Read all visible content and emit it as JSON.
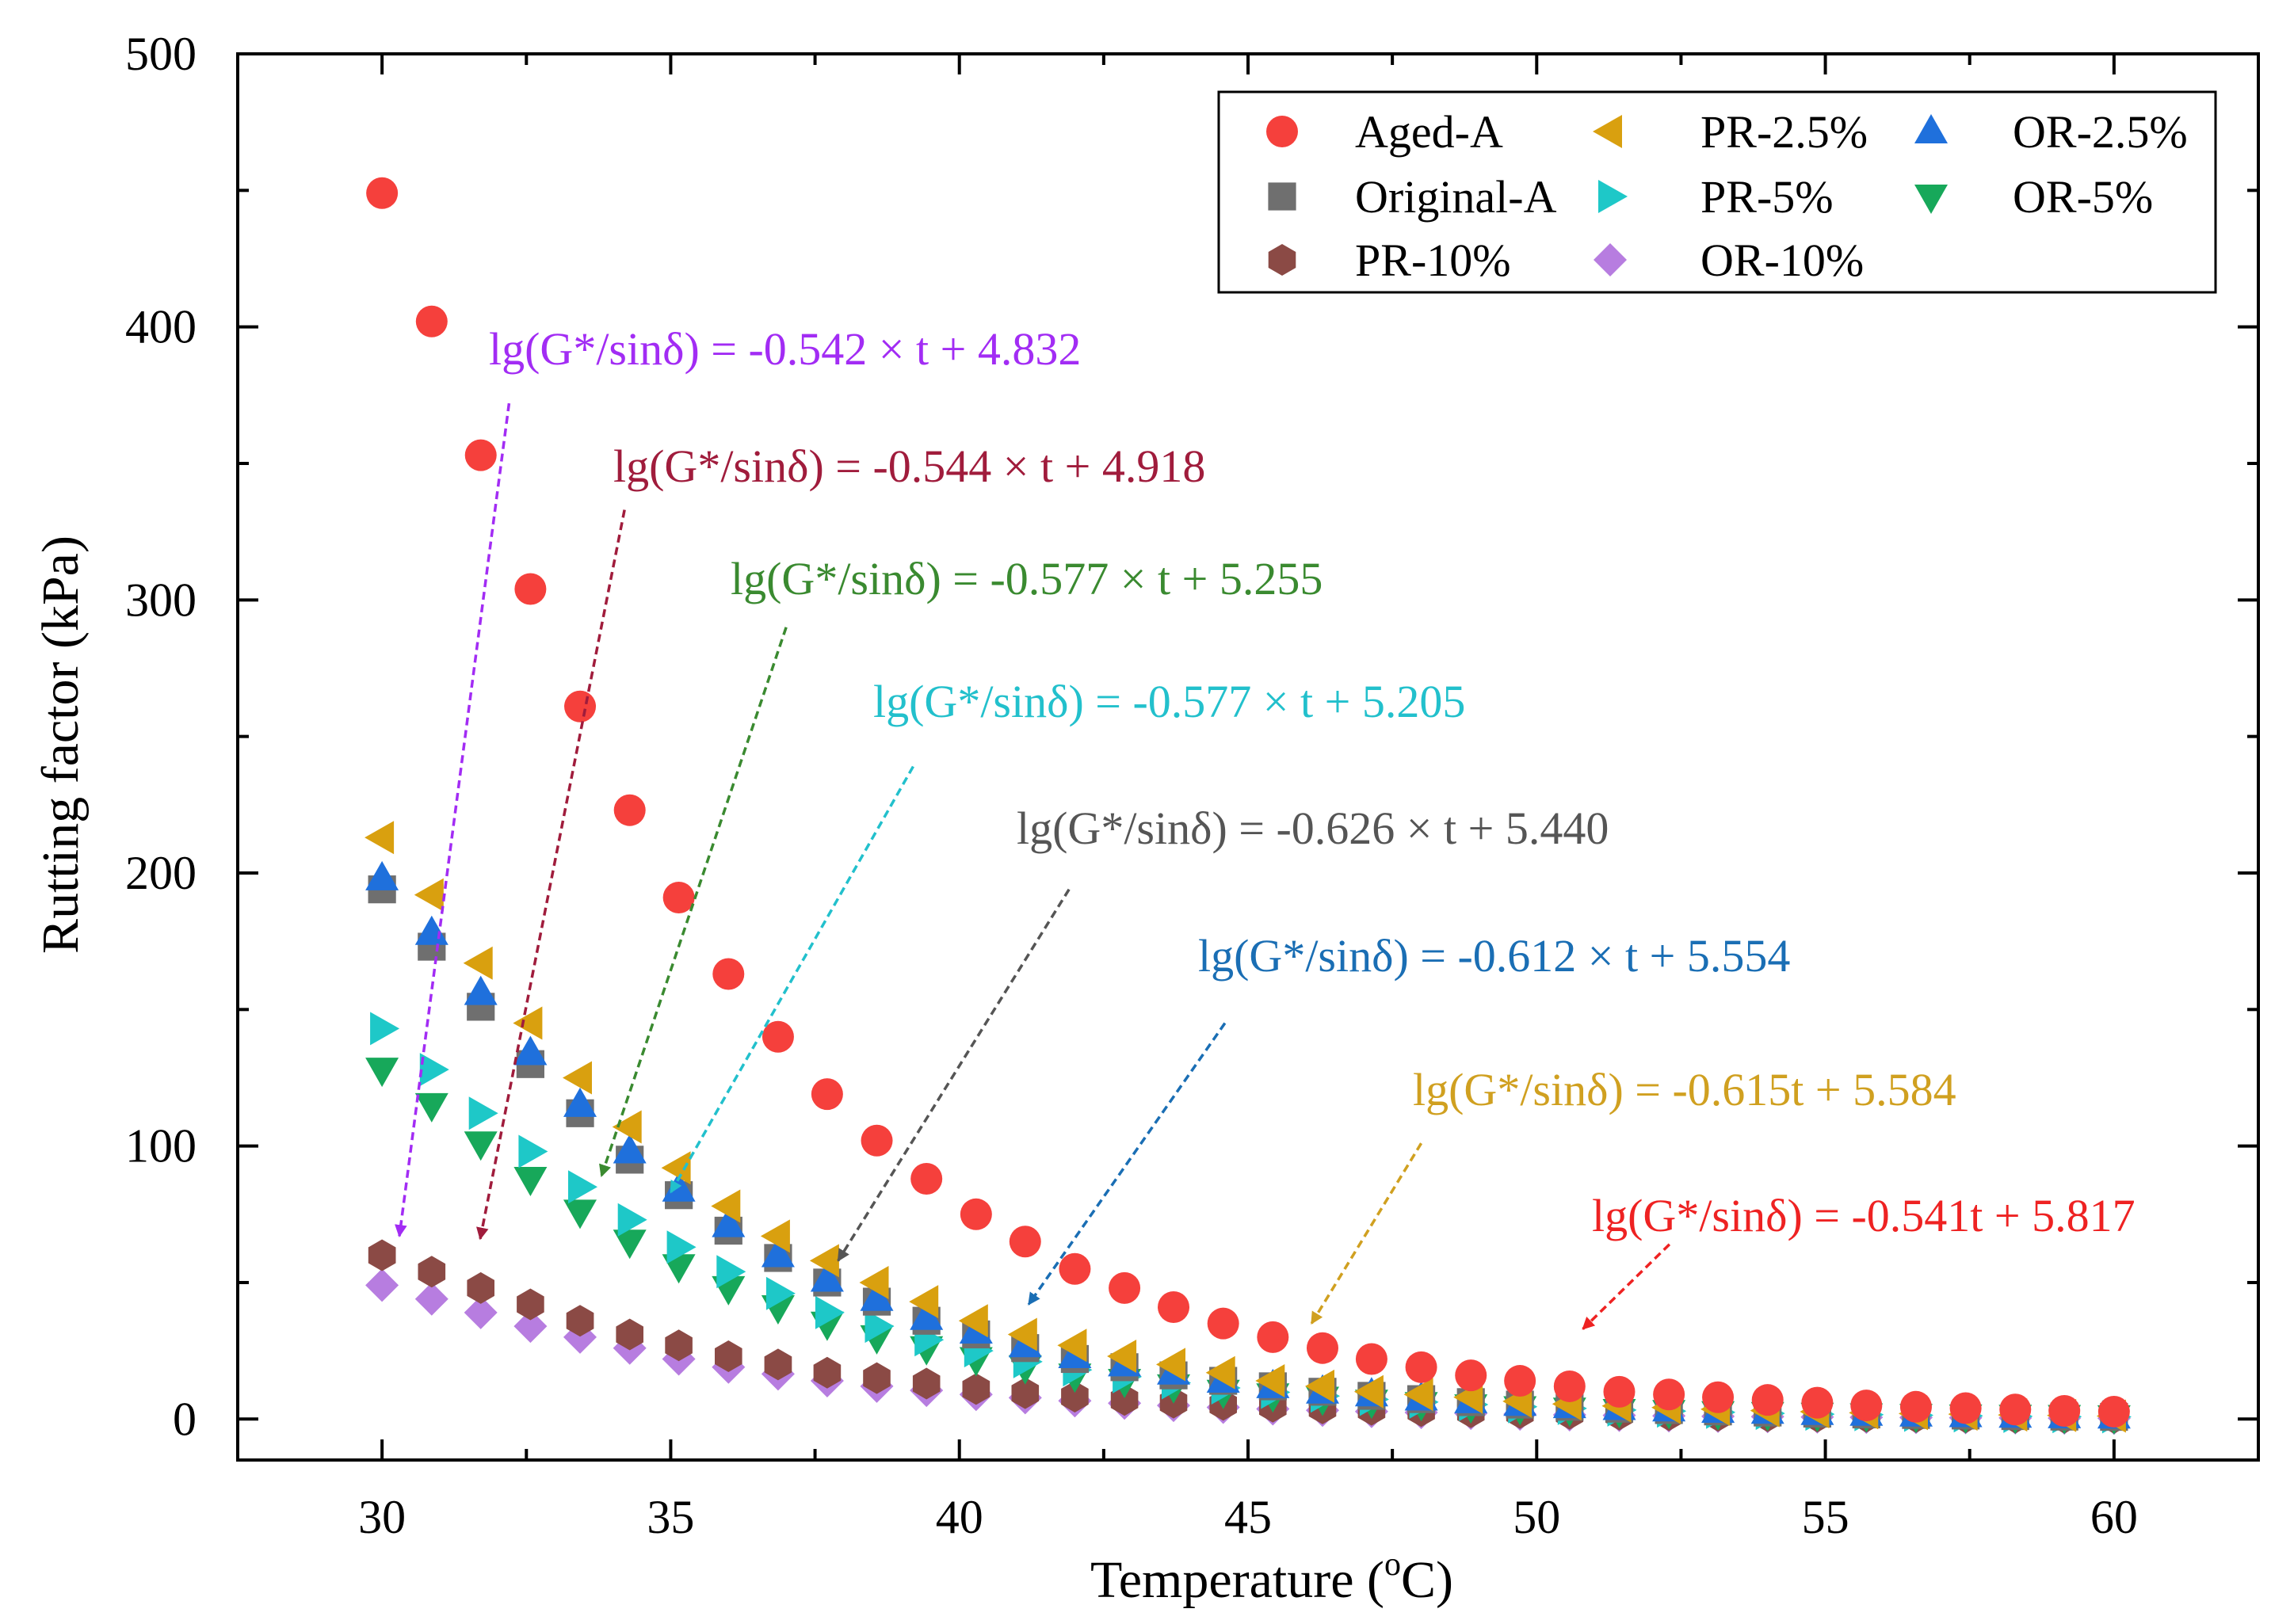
{
  "chart_data": {
    "type": "scatter",
    "xlabel": "Temperature (",
    "xlabel_sup": "o",
    "xlabel_tail": "C)",
    "ylabel": "Rutting factor (kPa)",
    "xlim": [
      27.5,
      62.5
    ],
    "ylim": [
      -15,
      500
    ],
    "x_ticks": [
      30,
      35,
      40,
      45,
      50,
      55,
      60
    ],
    "x_tick_labels": [
      "30",
      "35",
      "40",
      "45",
      "50",
      "55",
      "60"
    ],
    "y_ticks": [
      0,
      100,
      200,
      300,
      400,
      500
    ],
    "y_tick_labels": [
      "0",
      "100",
      "200",
      "300",
      "400",
      "500"
    ],
    "x": [
      30,
      30.86,
      31.71,
      32.57,
      33.43,
      34.29,
      35.14,
      36,
      36.86,
      37.71,
      38.57,
      39.43,
      40.29,
      41.14,
      42,
      42.86,
      43.71,
      44.57,
      45.43,
      46.29,
      47.14,
      48,
      48.86,
      49.71,
      50.57,
      51.43,
      52.29,
      53.14,
      54,
      54.86,
      55.71,
      56.57,
      57.43,
      58.29,
      59.14,
      60
    ],
    "series": [
      {
        "name": "Aged-A",
        "marker": "circle",
        "color": "#f5403c",
        "values": [
          449,
          402,
          353,
          304,
          261,
          223,
          191,
          163,
          140,
          119,
          102,
          88,
          75,
          65,
          55,
          48,
          41,
          35,
          30,
          26,
          22,
          19,
          16,
          14,
          12,
          10,
          9,
          8,
          7,
          6,
          5,
          4.5,
          4,
          3.5,
          3,
          2.7
        ]
      },
      {
        "name": "PR-2.5%",
        "marker": "triangle-left",
        "color": "#d9a00f",
        "values": [
          213,
          192,
          167,
          145,
          125,
          107,
          92,
          78,
          67,
          58,
          50,
          43,
          36,
          31,
          27,
          23,
          20,
          17,
          14,
          12,
          10,
          9,
          8,
          6.5,
          5.5,
          4.8,
          4.2,
          3.6,
          3.1,
          2.7,
          2.3,
          2,
          1.8,
          1.5,
          1.3,
          1.1
        ]
      },
      {
        "name": "OR-2.5%",
        "marker": "triangle-up",
        "color": "#1f70dc",
        "values": [
          198,
          178,
          156,
          134,
          115,
          98,
          84,
          71,
          60,
          51,
          44,
          37,
          32,
          27,
          23,
          20,
          17,
          14,
          12,
          10,
          9,
          7.5,
          6.5,
          5.5,
          4.7,
          4,
          3.5,
          3,
          2.6,
          2.2,
          1.9,
          1.6,
          1.4,
          1.2,
          1,
          0.9
        ]
      },
      {
        "name": "Original-A",
        "marker": "square",
        "color": "#6f6f6f",
        "values": [
          194,
          173,
          151,
          130,
          112,
          95,
          82,
          69,
          59,
          50,
          43,
          36,
          31,
          26,
          22,
          19,
          16,
          14,
          12,
          10,
          8.5,
          7.3,
          6.2,
          5.3,
          4.5,
          3.8,
          3.3,
          2.8,
          2.4,
          2,
          1.7,
          1.5,
          1.3,
          1.1,
          0.9,
          0.8
        ]
      },
      {
        "name": "PR-5%",
        "marker": "triangle-right",
        "color": "#1ec8c8",
        "values": [
          143,
          128,
          112,
          98,
          85,
          73,
          63,
          54,
          46,
          39,
          34,
          29,
          25,
          21,
          18,
          15.5,
          13.3,
          11.4,
          9.8,
          8.4,
          7.2,
          6.2,
          5.3,
          4.5,
          3.9,
          3.3,
          2.9,
          2.5,
          2.1,
          1.8,
          1.6,
          1.4,
          1.2,
          1,
          0.9,
          0.8
        ]
      },
      {
        "name": "OR-5%",
        "marker": "triangle-down",
        "color": "#17a85a",
        "values": [
          128,
          115,
          101,
          88,
          76,
          65,
          56,
          48,
          41,
          35,
          30,
          26,
          22,
          19,
          16,
          14,
          12,
          10,
          8.7,
          7.5,
          6.4,
          5.5,
          4.7,
          4,
          3.5,
          3,
          2.6,
          2.2,
          1.9,
          1.6,
          1.4,
          1.2,
          1,
          0.9,
          0.8,
          0.7
        ]
      },
      {
        "name": "PR-10%",
        "marker": "hexagon",
        "color": "#8b4a45",
        "values": [
          60,
          54,
          48,
          42,
          36,
          31,
          27,
          23,
          20,
          17,
          15,
          13,
          11,
          9.5,
          8.2,
          7,
          6,
          5.2,
          4.5,
          3.9,
          3.4,
          2.9,
          2.5,
          2.2,
          1.9,
          1.6,
          1.4,
          1.2,
          1.05,
          0.9,
          0.8,
          0.7,
          0.6,
          0.5,
          0.45,
          0.4
        ]
      },
      {
        "name": "OR-10%",
        "marker": "diamond",
        "color": "#b77de0",
        "values": [
          49,
          44,
          39,
          34,
          30,
          26,
          22,
          19,
          16.5,
          14,
          12,
          10.5,
          9,
          7.8,
          6.7,
          5.8,
          5,
          4.3,
          3.7,
          3.2,
          2.8,
          2.4,
          2.1,
          1.8,
          1.55,
          1.35,
          1.15,
          1,
          0.86,
          0.74,
          0.64,
          0.55,
          0.48,
          0.41,
          0.36,
          0.31
        ]
      }
    ],
    "legend_position": "top-right",
    "legend_order": [
      "Aged-A",
      "PR-2.5%",
      "OR-2.5%",
      "Original-A",
      "PR-5%",
      "OR-5%",
      "PR-10%",
      "OR-10%"
    ],
    "annotations": [
      {
        "text": "lg(G*/sinδ) = -0.542 × t + 4.832",
        "color": "#a22cf4",
        "arrow_from": [
          32.2,
          372
        ],
        "arrow_to": [
          30.3,
          67
        ]
      },
      {
        "text": "lg(G*/sinδ) = -0.544 × t + 4.918",
        "color": "#a01c3c",
        "arrow_from": [
          34.2,
          333
        ],
        "arrow_to": [
          31.7,
          66
        ]
      },
      {
        "text": "lg(G*/sinδ) = -0.577 × t + 5.255",
        "color": "#3a8a30",
        "arrow_from": [
          37.0,
          290
        ],
        "arrow_to": [
          33.8,
          89
        ]
      },
      {
        "text": "lg(G*/sinδ) = -0.577 × t + 5.205",
        "color": "#22c0cc",
        "arrow_from": [
          39.2,
          239
        ],
        "arrow_to": [
          35.0,
          83
        ]
      },
      {
        "text": "lg(G*/sinδ) = -0.626 × t + 5.440",
        "color": "#555555",
        "arrow_from": [
          41.9,
          194
        ],
        "arrow_to": [
          37.9,
          58
        ]
      },
      {
        "text": "lg(G*/sinδ) = -0.612 × t + 5.554",
        "color": "#1a6eb4",
        "arrow_from": [
          44.6,
          145
        ],
        "arrow_to": [
          41.2,
          42
        ]
      },
      {
        "text": "lg(G*/sinδ) = -0.615t + 5.584",
        "color": "#d0a020",
        "arrow_from": [
          48.0,
          101
        ],
        "arrow_to": [
          46.1,
          35
        ]
      },
      {
        "text": "lg(G*/sinδ) = -0.541t + 5.817",
        "color": "#ee2222",
        "arrow_from": [
          52.3,
          64
        ],
        "arrow_to": [
          50.8,
          33
        ]
      }
    ]
  }
}
